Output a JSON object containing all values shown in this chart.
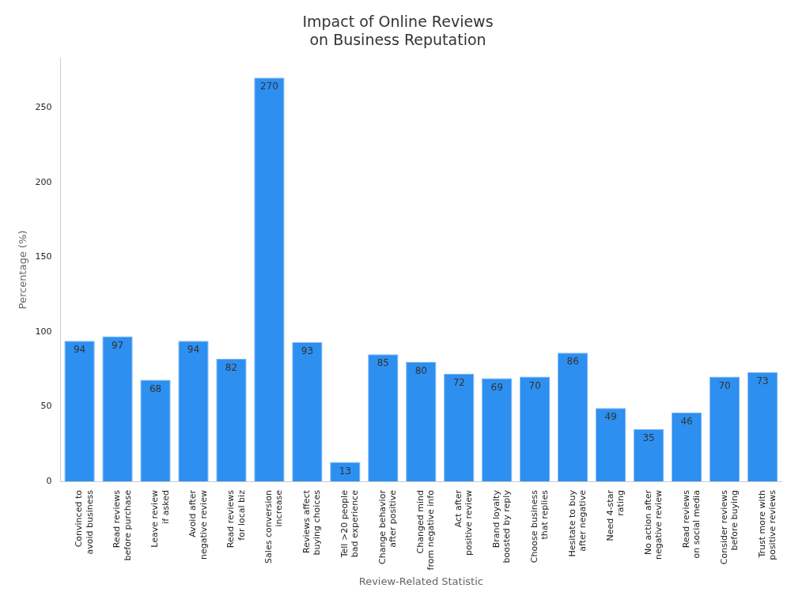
{
  "chart_data": {
    "type": "bar",
    "title": "Impact of Online Reviews\non Business Reputation",
    "xlabel": "Review-Related Statistic",
    "ylabel": "Percentage (%)",
    "categories": [
      "Convinced to\navoid business",
      "Read reviews\nbefore purchase",
      "Leave review\nif asked",
      "Avoid after\nnegative review",
      "Read reviews\nfor local biz",
      "Sales conversion\nincrease",
      "Reviews affect\nbuying choices",
      "Tell >20 people\nbad experience",
      "Change behavior\nafter positive",
      "Changed mind\nfrom negative info",
      "Act after\npositive review",
      "Brand loyalty\nboosted by reply",
      "Choose business\nthat replies",
      "Hesitate to buy\nafter negative",
      "Need 4-star\nrating",
      "No action after\nnegative review",
      "Read reviews\non social media",
      "Consider reviews\nbefore buying",
      "Trust more with\npositive reviews"
    ],
    "values": [
      94,
      97,
      68,
      94,
      82,
      270,
      93,
      13,
      85,
      80,
      72,
      69,
      70,
      86,
      49,
      35,
      46,
      70,
      73
    ],
    "color": "#2d8ff0",
    "ylim": [
      0,
      283
    ],
    "yticks": [
      0,
      50,
      100,
      150,
      200,
      250
    ],
    "grid": false,
    "legend": false,
    "data_labels": true
  }
}
